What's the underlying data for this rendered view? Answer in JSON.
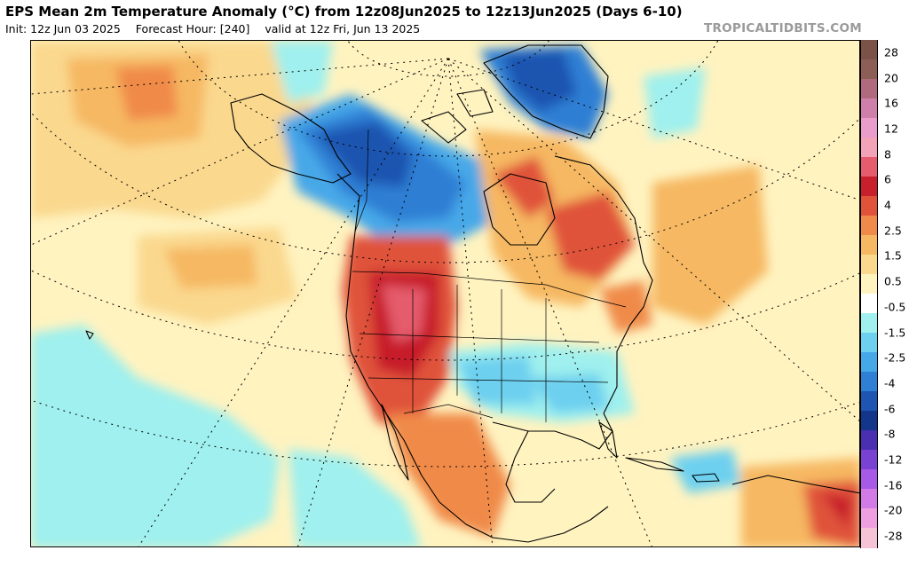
{
  "header": {
    "title": "EPS Mean 2m Temperature Anomaly (°C) from 12z08Jun2025 to 12z13Jun2025 (Days 6-10)",
    "init": "Init: 12z Jun 03 2025",
    "forecast_hour": "Forecast Hour: [240]",
    "valid": "valid at 12z Fri, Jun 13 2025",
    "brand": "TROPICALTIDBITS.COM"
  },
  "colorbar": {
    "labels": [
      "28",
      "20",
      "16",
      "12",
      "8",
      "6",
      "4",
      "2.5",
      "1.5",
      "0.5",
      "-0.5",
      "-1.5",
      "-2.5",
      "-4",
      "-6",
      "-8",
      "-12",
      "-16",
      "-20",
      "-28"
    ],
    "colors": [
      "#7a5246",
      "#8c5e56",
      "#b06a7e",
      "#cf80aa",
      "#ea9ccb",
      "#f2a3b8",
      "#e55c6c",
      "#c71f2c",
      "#e0533a",
      "#f08a4a",
      "#f6b862",
      "#fad88e",
      "#fff3c0",
      "#ffffff",
      "#9ff0ee",
      "#6dd0ef",
      "#47a8e8",
      "#2f7fd4",
      "#1e55b0",
      "#13358a",
      "#4a2fb0",
      "#7a42d3",
      "#a65ae6",
      "#d27ae6",
      "#ee9fe0",
      "#f6c2d6"
    ]
  },
  "map": {
    "region": "North America",
    "anomaly_regions": [
      {
        "name": "Western United States",
        "sign": "warm"
      },
      {
        "name": "Northern Mexico",
        "sign": "warm"
      },
      {
        "name": "Eastern Canada",
        "sign": "warm"
      },
      {
        "name": "Nunavut",
        "sign": "warm"
      },
      {
        "name": "Eastern Siberia",
        "sign": "warm"
      },
      {
        "name": "Northern South America",
        "sign": "warm"
      },
      {
        "name": "Alaska and Yukon",
        "sign": "cold"
      },
      {
        "name": "Northern British Columbia and Alberta",
        "sign": "cold"
      },
      {
        "name": "Greenland",
        "sign": "cold"
      },
      {
        "name": "Southern Plains and Southeast US",
        "sign": "cold"
      },
      {
        "name": "Eastern Pacific off Mexico",
        "sign": "cold"
      }
    ]
  }
}
